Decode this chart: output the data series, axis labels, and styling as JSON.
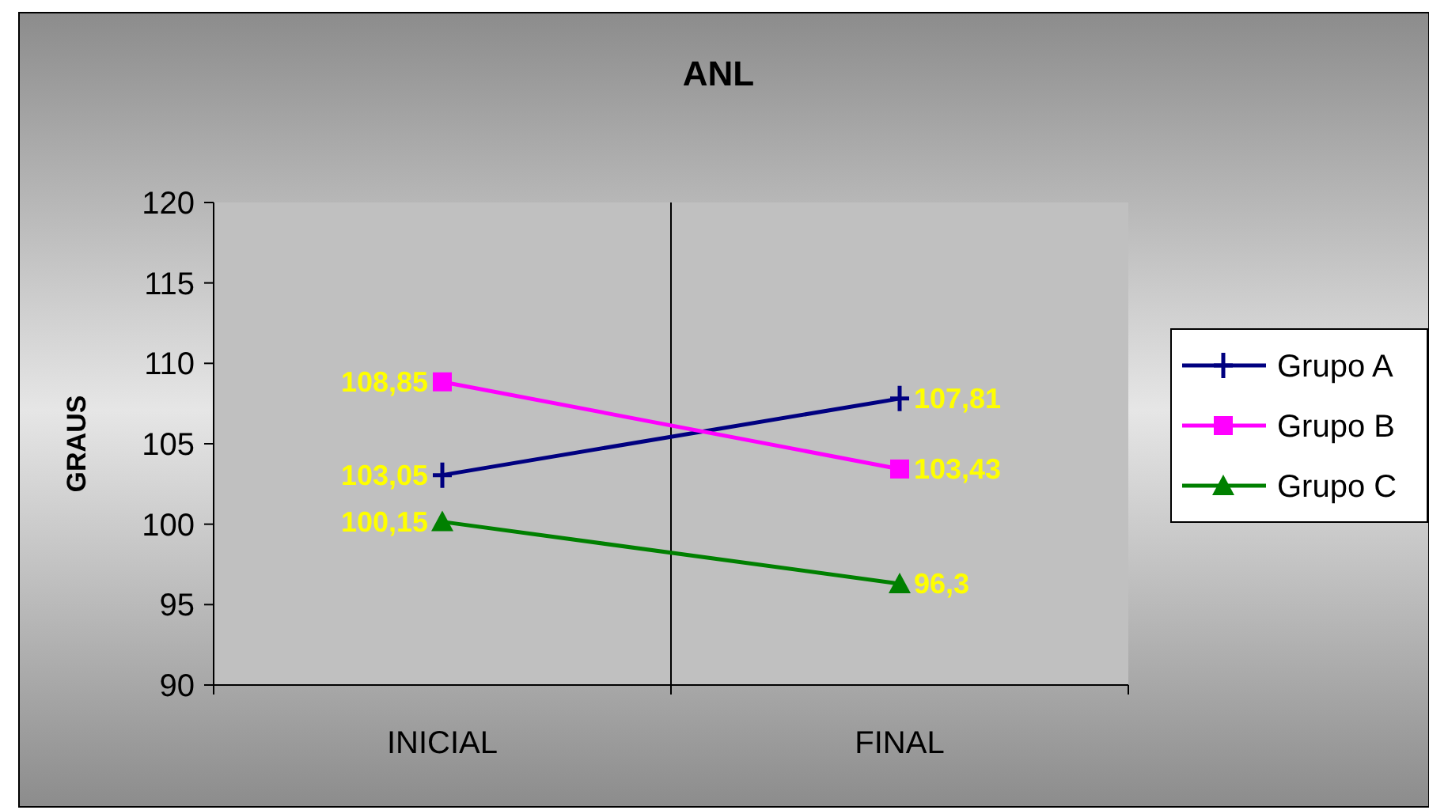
{
  "chart_data": {
    "type": "line",
    "title": "ANL",
    "ylabel": "GRAUS",
    "categories": [
      "INICIAL",
      "FINAL"
    ],
    "series": [
      {
        "name": "Grupo A",
        "color": "#000080",
        "marker": "cross",
        "values": [
          103.05,
          107.81
        ],
        "value_labels": [
          "103,05",
          "107,81"
        ]
      },
      {
        "name": "Grupo B",
        "color": "#ff00ff",
        "marker": "square",
        "values": [
          108.85,
          103.43
        ],
        "value_labels": [
          "108,85",
          "103,43"
        ]
      },
      {
        "name": "Grupo C",
        "color": "#008000",
        "marker": "triangle",
        "values": [
          100.15,
          96.3
        ],
        "value_labels": [
          "100,15",
          "96,3"
        ]
      }
    ],
    "ylim": [
      90,
      120
    ],
    "yticks": [
      90,
      95,
      100,
      105,
      110,
      115,
      120
    ],
    "grid": "x",
    "legend": "right"
  }
}
